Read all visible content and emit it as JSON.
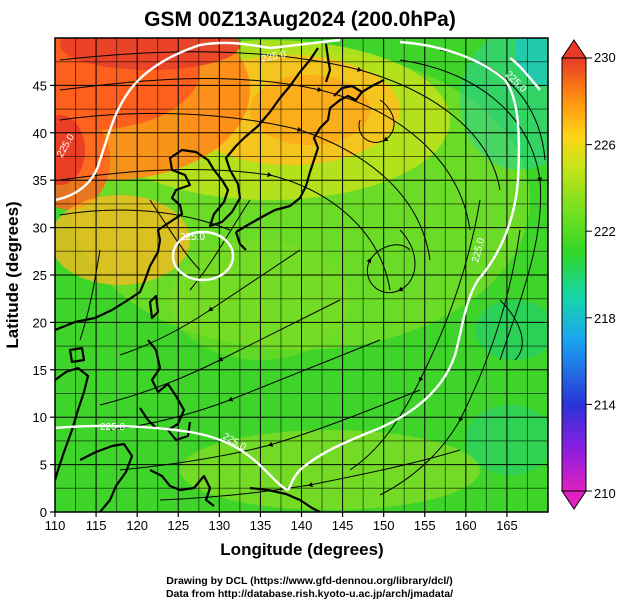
{
  "title": "GSM 00Z13Aug2024 (200.0hPa)",
  "xaxis": {
    "label": "Longitude (degrees)",
    "range": [
      110,
      170
    ],
    "ticks": [
      "110",
      "115",
      "120",
      "125",
      "130",
      "135",
      "140",
      "145",
      "150",
      "155",
      "160",
      "165"
    ]
  },
  "yaxis": {
    "label": "Latitude  (degrees)",
    "range": [
      0,
      50
    ],
    "ticks": [
      "0",
      "5",
      "10",
      "15",
      "20",
      "25",
      "30",
      "35",
      "40",
      "45"
    ]
  },
  "colorbar": {
    "range": [
      210,
      230
    ],
    "ticks": [
      "230",
      "226",
      "222",
      "218",
      "214",
      "210"
    ],
    "colors": [
      "#e020c0",
      "#7a20e0",
      "#2a34d8",
      "#1aa6f0",
      "#16d6a8",
      "#2fd626",
      "#6fe020",
      "#c0e418",
      "#ffd418",
      "#ff9410",
      "#ff5a18",
      "#e83a26"
    ]
  },
  "contours": [
    {
      "label": "225.0"
    },
    {
      "label": "225.0"
    },
    {
      "label": "225.0"
    },
    {
      "label": "225.0"
    },
    {
      "label": "225.0"
    },
    {
      "label": "225.0"
    },
    {
      "label": "225.0"
    }
  ],
  "grid": true,
  "credits": [
    "Drawing by DCL (https://www.gfd-dennou.org/library/dcl/)",
    "Data from http://database.rish.kyoto-u.ac.jp/arch/jmadata/"
  ]
}
